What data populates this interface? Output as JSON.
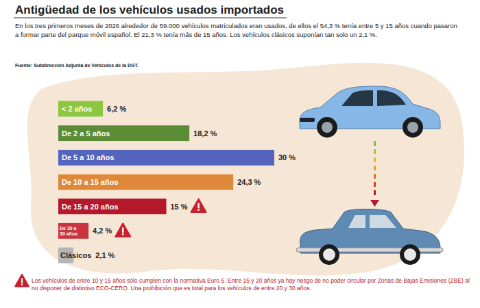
{
  "chart_data": {
    "type": "bar",
    "orientation": "horizontal",
    "title": "Antigüedad de los vehículos usados importados",
    "subtitle": "En los tres primeros meses de 2026 alrededor de 59.000 vehículos matriculados eran usados, de ellos el 54,3 % tenía entre 5 y 15 años cuando pasaron a formar parte del parque móvil español. El 21,3 % tenía más de 15 años. Los vehículos clásicos suponían tan solo un 2,1 %.",
    "source": "Fuente: Subdirección Adjunta de Vehículos de la DGT.",
    "footnote": "Los vehículos de entre 10 y 15 años sólo cumplen con la normativa Euro 5. Entre 15 y 20 años ya hay riesgo de no poder circular por Zonas de Bajas Emisiones (ZBE) al no disponer de distintivo ECO-CERO. Una prohibición que es total para los vehículos de entre 20 y 30 años.",
    "categories": [
      "< 2 años",
      "De 2 a 5 años",
      "De 5 a 10 años",
      "De 10 a 15 años",
      "De 15 a 20 años",
      "De 20 a 30 años",
      "Clásicos"
    ],
    "values": [
      6.2,
      18.2,
      30,
      24.3,
      15,
      4.2,
      2.1
    ],
    "value_labels": [
      "6,2 %",
      "18,2 %",
      "30 %",
      "24,3 %",
      "15 %",
      "4,2 %",
      "2,1 %"
    ],
    "colors": [
      "#8dc63f",
      "#5b8c35",
      "#5565bd",
      "#e0883a",
      "#b3182b",
      "#c9343e",
      "#b5b5b5"
    ],
    "data_labels": true,
    "tick_labels": "y"
  }
}
